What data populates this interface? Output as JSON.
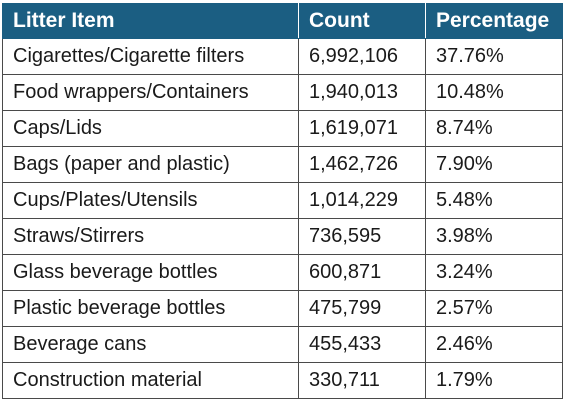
{
  "chart_data": {
    "type": "table",
    "columns": [
      "Litter Item",
      "Count",
      "Percentage"
    ],
    "rows": [
      {
        "item": "Cigarettes/Cigarette filters",
        "count": "6,992,106",
        "percentage": "37.76%"
      },
      {
        "item": "Food wrappers/Containers",
        "count": "1,940,013",
        "percentage": "10.48%"
      },
      {
        "item": "Caps/Lids",
        "count": "1,619,071",
        "percentage": "8.74%"
      },
      {
        "item": "Bags (paper and plastic)",
        "count": "1,462,726",
        "percentage": "7.90%"
      },
      {
        "item": "Cups/Plates/Utensils",
        "count": "1,014,229",
        "percentage": "5.48%"
      },
      {
        "item": "Straws/Stirrers",
        "count": "736,595",
        "percentage": "3.98%"
      },
      {
        "item": "Glass beverage bottles",
        "count": "600,871",
        "percentage": "3.24%"
      },
      {
        "item": "Plastic beverage bottles",
        "count": "475,799",
        "percentage": "2.57%"
      },
      {
        "item": "Beverage cans",
        "count": "455,433",
        "percentage": "2.46%"
      },
      {
        "item": "Construction material",
        "count": "330,711",
        "percentage": "1.79%"
      }
    ],
    "colors": {
      "header_background": "#1b5e82",
      "header_text": "#ffffff",
      "border": "#4a4a4a"
    }
  }
}
